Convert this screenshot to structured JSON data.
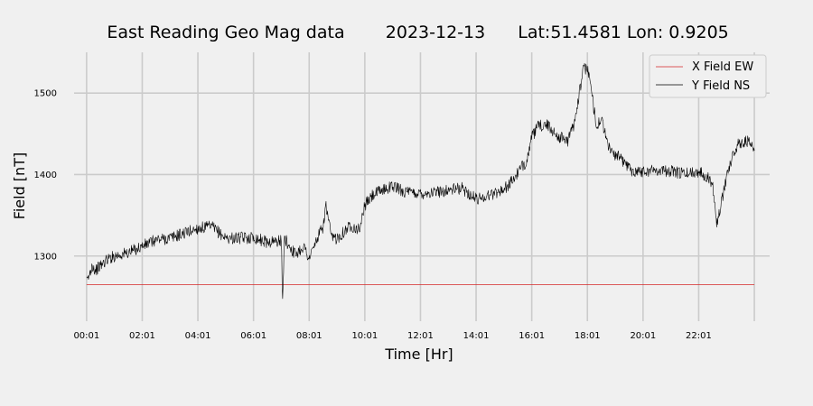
{
  "chart_data": {
    "type": "line",
    "title": {
      "name": "East Reading Geo Mag data",
      "date": "2023-12-13",
      "location": "Lat:51.4581  Lon: 0.9205"
    },
    "xlabel": "Time  [Hr]",
    "ylabel": "Field  [nT]",
    "x_unit": "hours since 00:01",
    "xlim": [
      -0.45,
      24.55
    ],
    "ylim": [
      1220,
      1550
    ],
    "x_ticks": [
      {
        "x": 0,
        "label": "00:01"
      },
      {
        "x": 2,
        "label": "02:01"
      },
      {
        "x": 4,
        "label": "04:01"
      },
      {
        "x": 6,
        "label": "06:01"
      },
      {
        "x": 8,
        "label": "08:01"
      },
      {
        "x": 10,
        "label": "10:01"
      },
      {
        "x": 12,
        "label": "12:01"
      },
      {
        "x": 14,
        "label": "14:01"
      },
      {
        "x": 16,
        "label": "16:01"
      },
      {
        "x": 18,
        "label": "18:01"
      },
      {
        "x": 20,
        "label": "20:01"
      },
      {
        "x": 22,
        "label": "22:01"
      },
      {
        "x": 24,
        "label": ""
      }
    ],
    "y_ticks": [
      {
        "y": 1300,
        "label": "1300"
      },
      {
        "y": 1400,
        "label": "1400"
      },
      {
        "y": 1500,
        "label": "1500"
      }
    ],
    "grid": true,
    "legend_position": "top-right",
    "series": [
      {
        "name": "X Field EW",
        "color": "#d62728",
        "x": [
          0,
          24
        ],
        "y": [
          1265,
          1265
        ]
      },
      {
        "name": "Y Field NS",
        "color": "#000000",
        "x": [
          0,
          0.1,
          0.2,
          0.3,
          0.5,
          0.75,
          1,
          1.5,
          2,
          2.5,
          3,
          3.5,
          4,
          4.5,
          5,
          5.5,
          6,
          6.5,
          7,
          7.05,
          7.1,
          7.5,
          7.8,
          8,
          8.3,
          8.5,
          8.6,
          8.8,
          9,
          9.5,
          9.8,
          10,
          10.3,
          10.7,
          11,
          11.5,
          12,
          12.5,
          13,
          13.5,
          14,
          14.5,
          15,
          15.3,
          15.5,
          15.8,
          16,
          16.2,
          16.5,
          16.8,
          17,
          17.3,
          17.5,
          17.7,
          17.85,
          18,
          18.1,
          18.2,
          18.35,
          18.5,
          18.7,
          18.9,
          19,
          19.3,
          19.6,
          20,
          20.5,
          21,
          21.5,
          22,
          22.3,
          22.5,
          22.6,
          22.65,
          22.8,
          23,
          23.2,
          23.4,
          23.6,
          23.8,
          24
        ],
        "y": [
          1268,
          1276,
          1290,
          1282,
          1288,
          1296,
          1300,
          1304,
          1312,
          1320,
          1322,
          1328,
          1334,
          1336,
          1322,
          1322,
          1323,
          1317,
          1319,
          1235,
          1322,
          1302,
          1312,
          1297,
          1322,
          1336,
          1362,
          1322,
          1322,
          1338,
          1332,
          1362,
          1375,
          1382,
          1386,
          1378,
          1377,
          1378,
          1381,
          1383,
          1370,
          1375,
          1382,
          1392,
          1402,
          1416,
          1445,
          1458,
          1462,
          1452,
          1446,
          1442,
          1460,
          1498,
          1528,
          1532,
          1512,
          1488,
          1458,
          1470,
          1440,
          1425,
          1425,
          1416,
          1405,
          1404,
          1406,
          1404,
          1401,
          1404,
          1398,
          1388,
          1362,
          1340,
          1362,
          1398,
          1421,
          1436,
          1441,
          1440,
          1428
        ]
      }
    ]
  }
}
